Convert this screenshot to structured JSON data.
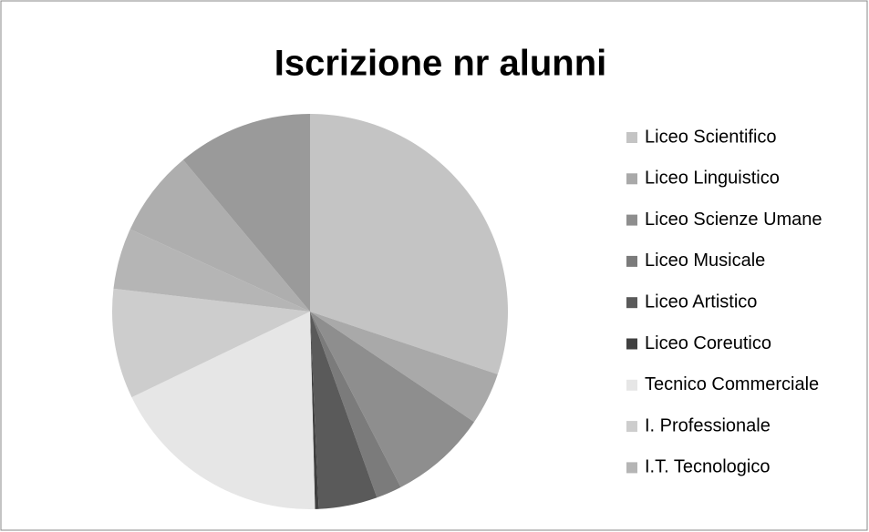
{
  "chart_data": {
    "type": "pie",
    "title": "Iscrizione nr  alunni",
    "categories": [
      "Liceo Scientifico",
      "Liceo Linguistico",
      "Liceo Scienze Umane",
      "Liceo Musicale",
      "Liceo Artistico",
      "Liceo Coreutico",
      "Tecnico Commerciale",
      "I. Professionale",
      "I.T. Tecnologico",
      null,
      null
    ],
    "values": [
      30.2,
      4.3,
      8,
      2.1,
      4.8,
      0.3,
      18.3,
      9,
      5,
      7.1,
      11.1
    ],
    "colors": [
      "#c4c4c4",
      "#a9a9a9",
      "#8e8e8e",
      "#7b7b7b",
      "#5a5a5a",
      "#404040",
      "#e6e6e6",
      "#cdcdcd",
      "#b5b5b5",
      "#aeaeae",
      "#9a9a9a"
    ],
    "legend": "right"
  }
}
